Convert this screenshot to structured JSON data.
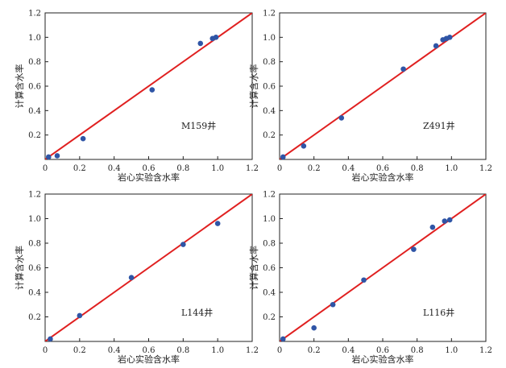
{
  "chart_data": [
    {
      "type": "scatter",
      "xlabel": "岩心实验含水率",
      "ylabel": "计算含水率",
      "annotation": "M159井",
      "xlim": [
        0,
        1.2
      ],
      "ylim": [
        0,
        1.2
      ],
      "x_ticks": [
        "0",
        "0.2",
        "0.4",
        "0.6",
        "0.8",
        "1.0",
        "1.2"
      ],
      "y_ticks": [
        "0.2",
        "0.4",
        "0.6",
        "0.8",
        "1.0",
        "1.2"
      ],
      "points": [
        {
          "x": 0.02,
          "y": 0.02
        },
        {
          "x": 0.07,
          "y": 0.03
        },
        {
          "x": 0.22,
          "y": 0.17
        },
        {
          "x": 0.62,
          "y": 0.57
        },
        {
          "x": 0.9,
          "y": 0.95
        },
        {
          "x": 0.97,
          "y": 0.99
        },
        {
          "x": 0.99,
          "y": 1.0
        }
      ],
      "reference_line": {
        "from": [
          0,
          0
        ],
        "to": [
          1.2,
          1.2
        ]
      }
    },
    {
      "type": "scatter",
      "xlabel": "岩心实验含水率",
      "ylabel": "计算含水率",
      "annotation": "Z491井",
      "xlim": [
        0,
        1.2
      ],
      "ylim": [
        0,
        1.2
      ],
      "x_ticks": [
        "0",
        "0.2",
        "0.4",
        "0.6",
        "0.8",
        "1.0",
        "1.2"
      ],
      "y_ticks": [
        "0.2",
        "0.4",
        "0.6",
        "0.8",
        "1.0",
        "1.2"
      ],
      "points": [
        {
          "x": 0.02,
          "y": 0.02
        },
        {
          "x": 0.14,
          "y": 0.11
        },
        {
          "x": 0.36,
          "y": 0.34
        },
        {
          "x": 0.72,
          "y": 0.74
        },
        {
          "x": 0.91,
          "y": 0.93
        },
        {
          "x": 0.95,
          "y": 0.98
        },
        {
          "x": 0.97,
          "y": 0.99
        },
        {
          "x": 0.99,
          "y": 1.0
        }
      ],
      "reference_line": {
        "from": [
          0,
          0
        ],
        "to": [
          1.2,
          1.2
        ]
      }
    },
    {
      "type": "scatter",
      "xlabel": "岩心实验含水率",
      "ylabel": "计算含水率",
      "annotation": "L144井",
      "xlim": [
        0,
        1.2
      ],
      "ylim": [
        0,
        1.2
      ],
      "x_ticks": [
        "0",
        "0.2",
        "0.4",
        "0.6",
        "0.8",
        "1.0",
        "1.2"
      ],
      "y_ticks": [
        "0.2",
        "0.4",
        "0.6",
        "0.8",
        "1.0",
        "1.2"
      ],
      "points": [
        {
          "x": 0.03,
          "y": 0.02
        },
        {
          "x": 0.2,
          "y": 0.21
        },
        {
          "x": 0.5,
          "y": 0.52
        },
        {
          "x": 0.8,
          "y": 0.79
        },
        {
          "x": 1.0,
          "y": 0.96
        }
      ],
      "reference_line": {
        "from": [
          0,
          0
        ],
        "to": [
          1.2,
          1.2
        ]
      }
    },
    {
      "type": "scatter",
      "xlabel": "岩心实验含水率",
      "ylabel": "计算含水率",
      "annotation": "L116井",
      "xlim": [
        0,
        1.2
      ],
      "ylim": [
        0,
        1.2
      ],
      "x_ticks": [
        "0",
        "0.2",
        "0.4",
        "0.6",
        "0.8",
        "1.0",
        "1.2"
      ],
      "y_ticks": [
        "0.2",
        "0.4",
        "0.6",
        "0.8",
        "1.0",
        "1.2"
      ],
      "points": [
        {
          "x": 0.02,
          "y": 0.02
        },
        {
          "x": 0.2,
          "y": 0.11
        },
        {
          "x": 0.31,
          "y": 0.3
        },
        {
          "x": 0.49,
          "y": 0.5
        },
        {
          "x": 0.78,
          "y": 0.75
        },
        {
          "x": 0.89,
          "y": 0.93
        },
        {
          "x": 0.96,
          "y": 0.98
        },
        {
          "x": 0.99,
          "y": 0.99
        }
      ],
      "reference_line": {
        "from": [
          0,
          0
        ],
        "to": [
          1.2,
          1.2
        ]
      }
    }
  ],
  "colors": {
    "point": "#2f55a6",
    "reference_line": "#e02020",
    "axis": "#222222"
  }
}
